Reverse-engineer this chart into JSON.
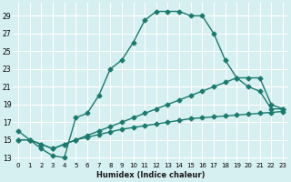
{
  "line1_x": [
    0,
    1,
    2,
    3,
    4,
    5,
    6,
    7,
    8,
    9,
    10,
    11,
    12,
    13,
    14,
    15,
    16,
    17,
    18,
    19,
    20,
    21,
    22,
    23
  ],
  "line1_y": [
    16,
    15,
    14,
    13.2,
    13,
    17.5,
    18,
    20,
    23,
    24,
    26,
    28.5,
    29.5,
    29.5,
    29.5,
    29,
    29,
    27,
    24,
    22,
    21,
    20.5,
    18.5,
    18.5
  ],
  "line2_x": [
    0,
    1,
    2,
    3,
    4,
    5,
    6,
    7,
    8,
    9,
    10,
    11,
    12,
    13,
    14,
    15,
    16,
    17,
    18,
    19,
    20,
    21,
    22,
    23
  ],
  "line2_y": [
    15,
    15,
    14.5,
    14.0,
    14.5,
    15.0,
    15.3,
    15.6,
    15.9,
    16.2,
    16.4,
    16.6,
    16.8,
    17.0,
    17.2,
    17.4,
    17.5,
    17.6,
    17.7,
    17.8,
    17.9,
    18.0,
    18.1,
    18.2
  ],
  "line3_x": [
    0,
    1,
    2,
    3,
    4,
    5,
    6,
    7,
    8,
    9,
    10,
    11,
    12,
    13,
    14,
    15,
    16,
    17,
    18,
    19,
    20,
    21,
    22,
    23
  ],
  "line3_y": [
    15,
    15,
    14.5,
    14.0,
    14.5,
    15.0,
    15.5,
    16.0,
    16.5,
    17.0,
    17.5,
    18.0,
    18.5,
    19.0,
    19.5,
    20.0,
    20.5,
    21.0,
    21.5,
    22.0,
    22.0,
    22.0,
    19.0,
    18.5
  ],
  "line_color": "#1a7a6e",
  "background_color": "#d6eff0",
  "grid_color": "#ffffff",
  "ylabel_values": [
    13,
    15,
    17,
    19,
    21,
    23,
    25,
    27,
    29
  ],
  "xlabel_values": [
    0,
    1,
    2,
    3,
    4,
    5,
    6,
    7,
    8,
    9,
    10,
    11,
    12,
    13,
    14,
    15,
    16,
    17,
    18,
    19,
    20,
    21,
    22,
    23
  ],
  "xlabel": "Humidex (Indice chaleur)",
  "ylim": [
    12.5,
    30.5
  ],
  "xlim": [
    -0.5,
    23.5
  ],
  "marker": "D",
  "markersize": 2.5,
  "linewidth": 1.0
}
